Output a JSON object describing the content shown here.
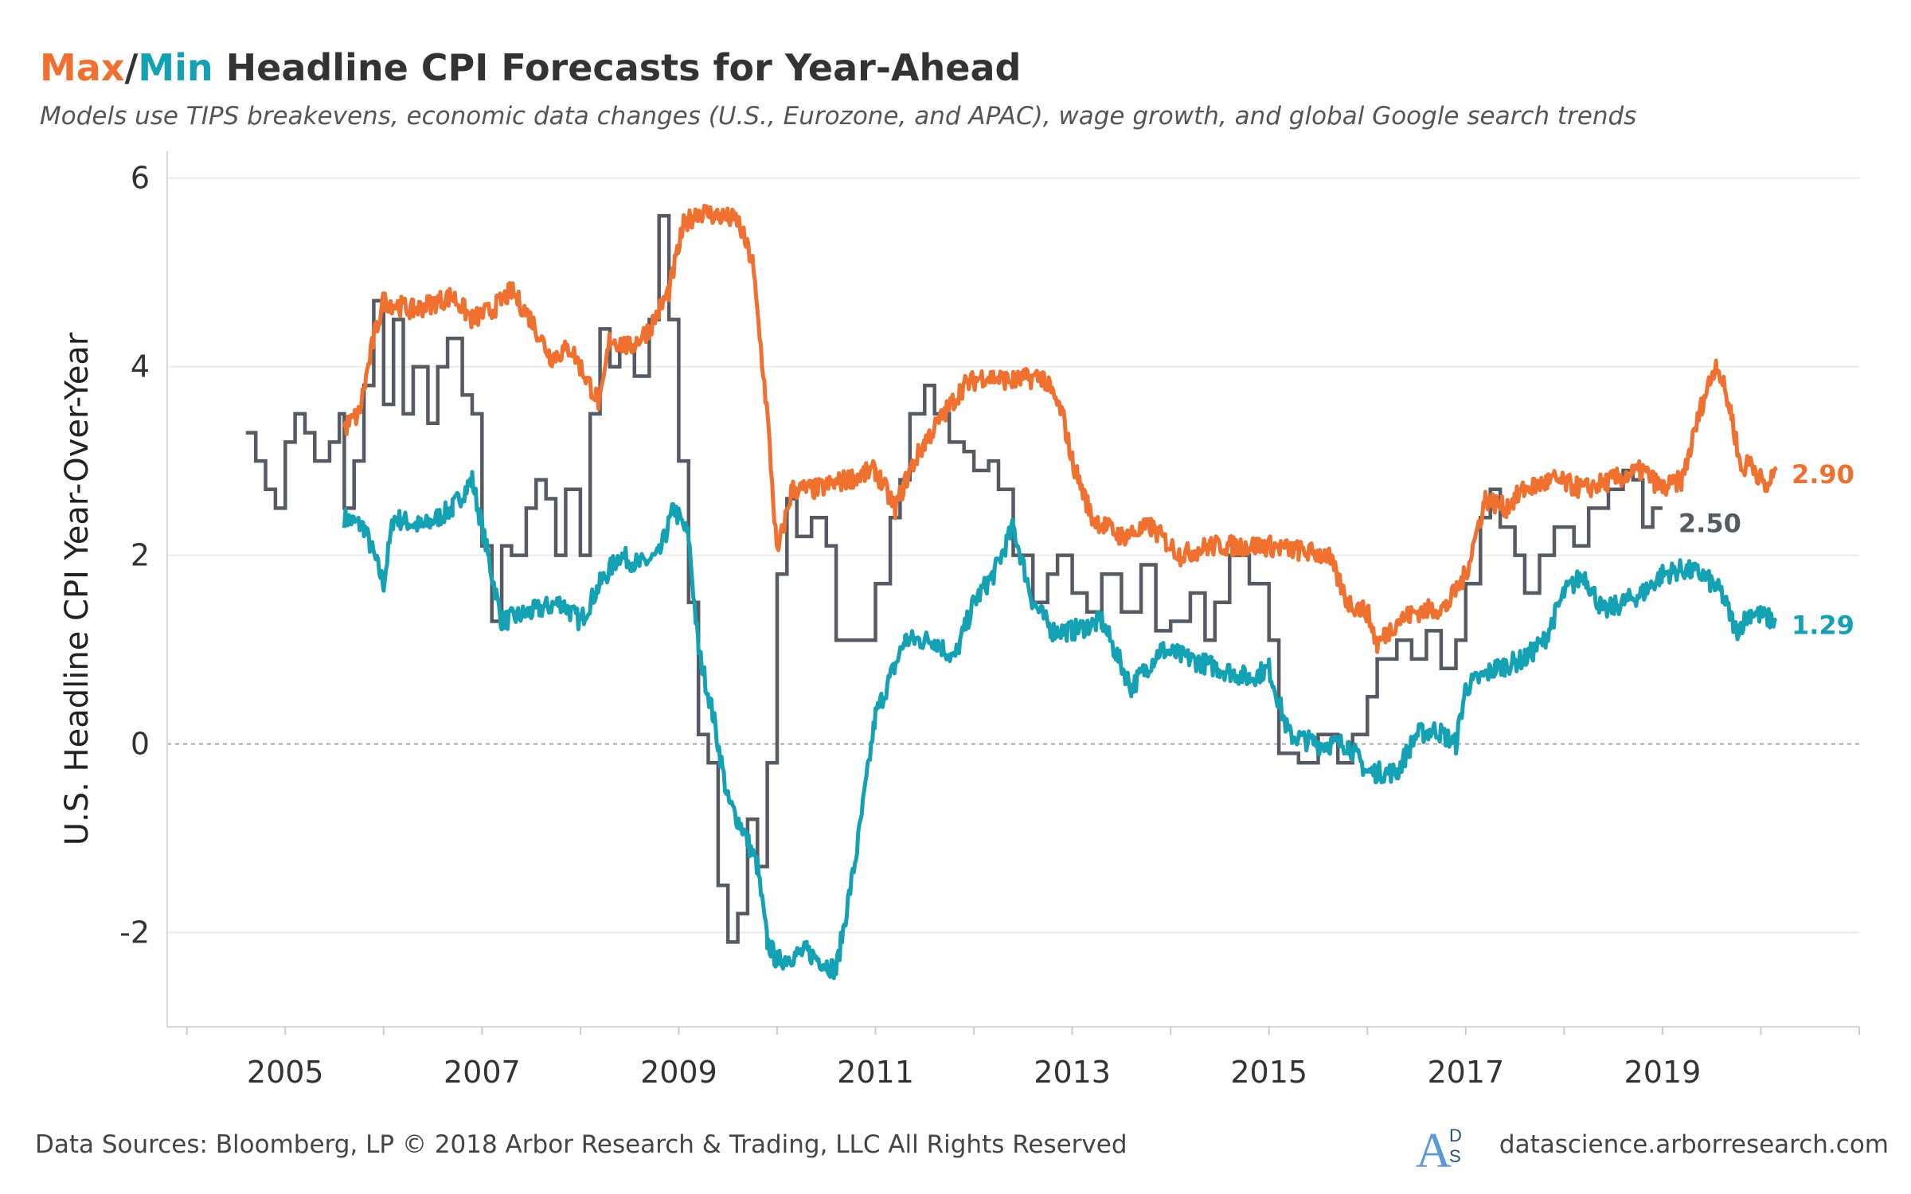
{
  "title": {
    "max_word": "Max",
    "sep": "/",
    "min_word": "Min",
    "rest": " Headline CPI Forecasts for Year-Ahead",
    "max_color": "#f07030",
    "min_color": "#14a1b4"
  },
  "subtitle": "Models use TIPS breakevens, economic data changes (U.S., Eurozone, and APAC), wage growth, and global Google search trends",
  "footer": {
    "left": "Data Sources: Bloomberg, LP © 2018 Arbor Research & Trading, LLC All Rights Reserved",
    "right": "datascience.arborresearch.com"
  },
  "chart_data": {
    "type": "line",
    "ylabel": "U.S. Headline CPI Year-Over-Year",
    "xlabel": "",
    "xlim": [
      2003.8,
      2021.0
    ],
    "ylim": [
      -3,
      6.2
    ],
    "xticks": [
      2005,
      2007,
      2009,
      2011,
      2013,
      2015,
      2017,
      2019
    ],
    "yticks": [
      -2,
      0,
      2,
      4,
      6
    ],
    "zero_line": true,
    "series": [
      {
        "name": "Max",
        "color": "#f07030",
        "end_label": "2.90",
        "style": "noisy",
        "points": [
          [
            2005.6,
            3.35
          ],
          [
            2005.75,
            3.5
          ],
          [
            2005.9,
            4.3
          ],
          [
            2006.0,
            4.7
          ],
          [
            2006.3,
            4.6
          ],
          [
            2006.7,
            4.75
          ],
          [
            2006.9,
            4.5
          ],
          [
            2007.1,
            4.6
          ],
          [
            2007.3,
            4.8
          ],
          [
            2007.5,
            4.5
          ],
          [
            2007.7,
            4.1
          ],
          [
            2007.9,
            4.2
          ],
          [
            2008.1,
            3.8
          ],
          [
            2008.2,
            3.6
          ],
          [
            2008.3,
            4.3
          ],
          [
            2008.5,
            4.2
          ],
          [
            2008.7,
            4.4
          ],
          [
            2008.9,
            4.8
          ],
          [
            2009.05,
            5.5
          ],
          [
            2009.2,
            5.65
          ],
          [
            2009.4,
            5.6
          ],
          [
            2009.6,
            5.55
          ],
          [
            2009.75,
            5.1
          ],
          [
            2009.9,
            3.5
          ],
          [
            2010.0,
            2.0
          ],
          [
            2010.15,
            2.7
          ],
          [
            2010.4,
            2.7
          ],
          [
            2010.7,
            2.8
          ],
          [
            2011.0,
            2.9
          ],
          [
            2011.2,
            2.5
          ],
          [
            2011.35,
            2.9
          ],
          [
            2011.5,
            3.2
          ],
          [
            2011.7,
            3.5
          ],
          [
            2011.9,
            3.8
          ],
          [
            2012.1,
            3.9
          ],
          [
            2012.4,
            3.85
          ],
          [
            2012.7,
            3.9
          ],
          [
            2012.9,
            3.5
          ],
          [
            2013.0,
            3.0
          ],
          [
            2013.2,
            2.4
          ],
          [
            2013.5,
            2.2
          ],
          [
            2013.8,
            2.3
          ],
          [
            2014.1,
            2.0
          ],
          [
            2014.4,
            2.1
          ],
          [
            2014.8,
            2.1
          ],
          [
            2015.0,
            2.1
          ],
          [
            2015.3,
            2.05
          ],
          [
            2015.6,
            2.0
          ],
          [
            2015.8,
            1.5
          ],
          [
            2016.0,
            1.4
          ],
          [
            2016.1,
            1.05
          ],
          [
            2016.3,
            1.3
          ],
          [
            2016.5,
            1.4
          ],
          [
            2016.8,
            1.45
          ],
          [
            2017.0,
            1.8
          ],
          [
            2017.2,
            2.6
          ],
          [
            2017.4,
            2.5
          ],
          [
            2017.6,
            2.7
          ],
          [
            2017.9,
            2.8
          ],
          [
            2018.2,
            2.7
          ],
          [
            2018.5,
            2.8
          ],
          [
            2018.8,
            2.9
          ],
          [
            2019.0,
            2.7
          ],
          [
            2019.2,
            2.8
          ],
          [
            2019.4,
            3.6
          ],
          [
            2019.55,
            4.05
          ],
          [
            2019.7,
            3.5
          ],
          [
            2019.8,
            2.9
          ],
          [
            2019.9,
            3.0
          ],
          [
            2020.05,
            2.7
          ],
          [
            2020.15,
            2.9
          ]
        ]
      },
      {
        "name": "Min",
        "color": "#14a1b4",
        "end_label": "1.29",
        "style": "noisy",
        "points": [
          [
            2005.6,
            2.4
          ],
          [
            2005.8,
            2.3
          ],
          [
            2006.0,
            1.7
          ],
          [
            2006.1,
            2.4
          ],
          [
            2006.4,
            2.3
          ],
          [
            2006.7,
            2.5
          ],
          [
            2006.9,
            2.8
          ],
          [
            2007.0,
            2.3
          ],
          [
            2007.2,
            1.3
          ],
          [
            2007.5,
            1.4
          ],
          [
            2007.8,
            1.5
          ],
          [
            2008.0,
            1.3
          ],
          [
            2008.2,
            1.7
          ],
          [
            2008.4,
            2.0
          ],
          [
            2008.6,
            1.9
          ],
          [
            2008.8,
            2.0
          ],
          [
            2008.95,
            2.5
          ],
          [
            2009.1,
            2.2
          ],
          [
            2009.2,
            1.0
          ],
          [
            2009.35,
            0.3
          ],
          [
            2009.5,
            -0.6
          ],
          [
            2009.65,
            -0.9
          ],
          [
            2009.8,
            -1.3
          ],
          [
            2009.9,
            -2.1
          ],
          [
            2010.0,
            -2.3
          ],
          [
            2010.3,
            -2.2
          ],
          [
            2010.6,
            -2.4
          ],
          [
            2010.8,
            -1.2
          ],
          [
            2011.0,
            0.3
          ],
          [
            2011.3,
            1.1
          ],
          [
            2011.6,
            1.1
          ],
          [
            2011.8,
            0.9
          ],
          [
            2012.0,
            1.5
          ],
          [
            2012.2,
            1.8
          ],
          [
            2012.4,
            2.3
          ],
          [
            2012.6,
            1.5
          ],
          [
            2012.8,
            1.2
          ],
          [
            2013.0,
            1.2
          ],
          [
            2013.3,
            1.3
          ],
          [
            2013.6,
            0.6
          ],
          [
            2013.9,
            1.0
          ],
          [
            2014.2,
            0.9
          ],
          [
            2014.5,
            0.8
          ],
          [
            2014.8,
            0.7
          ],
          [
            2015.0,
            0.8
          ],
          [
            2015.2,
            0.1
          ],
          [
            2015.5,
            0.0
          ],
          [
            2015.8,
            0.0
          ],
          [
            2016.0,
            -0.3
          ],
          [
            2016.3,
            -0.3
          ],
          [
            2016.5,
            0.1
          ],
          [
            2016.7,
            0.15
          ],
          [
            2016.9,
            0.0
          ],
          [
            2017.0,
            0.6
          ],
          [
            2017.3,
            0.8
          ],
          [
            2017.6,
            0.9
          ],
          [
            2017.8,
            1.1
          ],
          [
            2018.0,
            1.6
          ],
          [
            2018.2,
            1.8
          ],
          [
            2018.4,
            1.4
          ],
          [
            2018.6,
            1.5
          ],
          [
            2018.8,
            1.6
          ],
          [
            2019.0,
            1.8
          ],
          [
            2019.2,
            1.85
          ],
          [
            2019.4,
            1.8
          ],
          [
            2019.6,
            1.6
          ],
          [
            2019.75,
            1.2
          ],
          [
            2019.9,
            1.4
          ],
          [
            2020.15,
            1.3
          ]
        ]
      },
      {
        "name": "",
        "color": "#555a63",
        "end_label": "2.50",
        "style": "step",
        "points": [
          [
            2004.6,
            3.3
          ],
          [
            2004.7,
            3.0
          ],
          [
            2004.8,
            2.7
          ],
          [
            2004.9,
            2.5
          ],
          [
            2005.0,
            3.2
          ],
          [
            2005.1,
            3.5
          ],
          [
            2005.2,
            3.3
          ],
          [
            2005.3,
            3.0
          ],
          [
            2005.45,
            3.2
          ],
          [
            2005.55,
            3.5
          ],
          [
            2005.6,
            2.5
          ],
          [
            2005.7,
            3.0
          ],
          [
            2005.8,
            3.8
          ],
          [
            2005.9,
            4.7
          ],
          [
            2006.0,
            3.6
          ],
          [
            2006.1,
            4.5
          ],
          [
            2006.2,
            3.5
          ],
          [
            2006.3,
            4.0
          ],
          [
            2006.45,
            3.4
          ],
          [
            2006.55,
            4.0
          ],
          [
            2006.65,
            4.3
          ],
          [
            2006.8,
            3.7
          ],
          [
            2006.9,
            3.5
          ],
          [
            2007.0,
            2.1
          ],
          [
            2007.1,
            1.3
          ],
          [
            2007.2,
            2.1
          ],
          [
            2007.3,
            2.0
          ],
          [
            2007.45,
            2.5
          ],
          [
            2007.55,
            2.8
          ],
          [
            2007.65,
            2.6
          ],
          [
            2007.75,
            2.0
          ],
          [
            2007.85,
            2.7
          ],
          [
            2008.0,
            2.0
          ],
          [
            2008.1,
            3.5
          ],
          [
            2008.2,
            4.4
          ],
          [
            2008.3,
            4.0
          ],
          [
            2008.4,
            4.2
          ],
          [
            2008.55,
            3.9
          ],
          [
            2008.7,
            4.5
          ],
          [
            2008.8,
            5.6
          ],
          [
            2008.9,
            4.5
          ],
          [
            2009.0,
            3.0
          ],
          [
            2009.1,
            1.5
          ],
          [
            2009.2,
            0.1
          ],
          [
            2009.3,
            -0.2
          ],
          [
            2009.4,
            -1.5
          ],
          [
            2009.5,
            -2.1
          ],
          [
            2009.6,
            -1.8
          ],
          [
            2009.7,
            -0.8
          ],
          [
            2009.8,
            -1.3
          ],
          [
            2009.9,
            -0.2
          ],
          [
            2010.0,
            1.8
          ],
          [
            2010.1,
            2.6
          ],
          [
            2010.2,
            2.2
          ],
          [
            2010.35,
            2.4
          ],
          [
            2010.5,
            2.1
          ],
          [
            2010.6,
            1.1
          ],
          [
            2010.8,
            1.1
          ],
          [
            2011.0,
            1.7
          ],
          [
            2011.15,
            2.4
          ],
          [
            2011.25,
            2.8
          ],
          [
            2011.35,
            3.5
          ],
          [
            2011.5,
            3.8
          ],
          [
            2011.6,
            3.5
          ],
          [
            2011.75,
            3.2
          ],
          [
            2011.9,
            3.1
          ],
          [
            2012.0,
            2.9
          ],
          [
            2012.15,
            3.0
          ],
          [
            2012.25,
            2.7
          ],
          [
            2012.4,
            2.0
          ],
          [
            2012.6,
            1.5
          ],
          [
            2012.75,
            1.8
          ],
          [
            2012.85,
            2.0
          ],
          [
            2013.0,
            1.6
          ],
          [
            2013.15,
            1.4
          ],
          [
            2013.3,
            1.8
          ],
          [
            2013.5,
            1.4
          ],
          [
            2013.7,
            1.9
          ],
          [
            2013.85,
            1.2
          ],
          [
            2014.0,
            1.3
          ],
          [
            2014.2,
            1.6
          ],
          [
            2014.35,
            1.1
          ],
          [
            2014.45,
            1.5
          ],
          [
            2014.6,
            2.0
          ],
          [
            2014.8,
            1.7
          ],
          [
            2015.0,
            1.1
          ],
          [
            2015.1,
            -0.1
          ],
          [
            2015.3,
            -0.2
          ],
          [
            2015.5,
            0.1
          ],
          [
            2015.7,
            -0.2
          ],
          [
            2015.85,
            0.1
          ],
          [
            2016.0,
            0.5
          ],
          [
            2016.1,
            0.9
          ],
          [
            2016.3,
            1.1
          ],
          [
            2016.45,
            0.9
          ],
          [
            2016.6,
            1.2
          ],
          [
            2016.75,
            0.8
          ],
          [
            2016.9,
            1.1
          ],
          [
            2017.0,
            1.7
          ],
          [
            2017.15,
            2.4
          ],
          [
            2017.25,
            2.7
          ],
          [
            2017.35,
            2.3
          ],
          [
            2017.5,
            2.0
          ],
          [
            2017.6,
            1.6
          ],
          [
            2017.75,
            2.0
          ],
          [
            2017.9,
            2.3
          ],
          [
            2018.1,
            2.1
          ],
          [
            2018.25,
            2.5
          ],
          [
            2018.45,
            2.7
          ],
          [
            2018.6,
            2.9
          ],
          [
            2018.7,
            2.8
          ],
          [
            2018.8,
            2.3
          ],
          [
            2018.9,
            2.5
          ],
          [
            2019.0,
            2.5
          ]
        ]
      }
    ]
  }
}
